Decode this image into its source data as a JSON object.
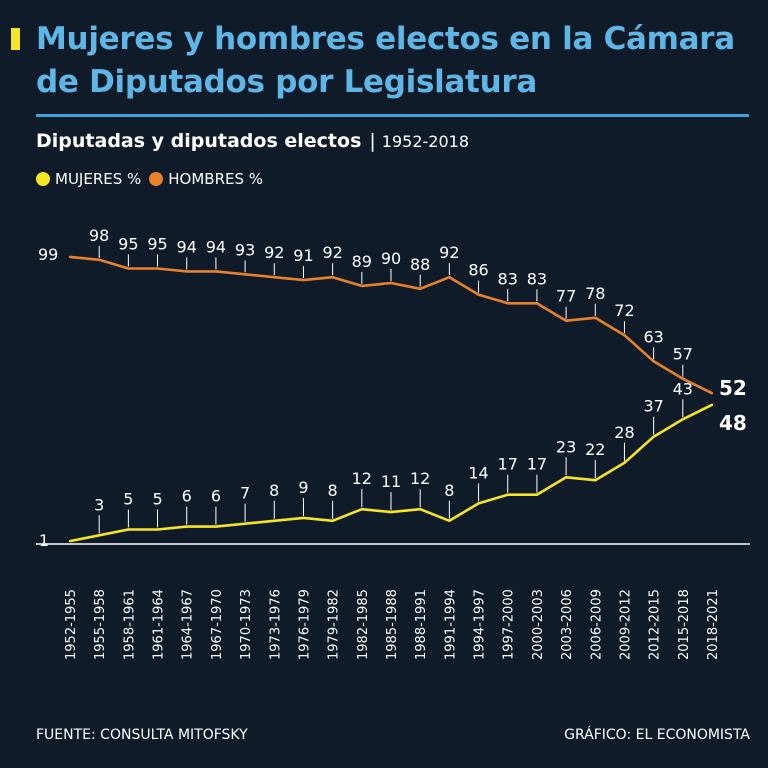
{
  "header": {
    "title": "Mujeres y hombres electos en la Cámara de Diputados por Legislatura",
    "subtitle": "Diputadas y diputados electos",
    "subtitle_separator": "|",
    "period": "1952-2018"
  },
  "legend": {
    "women_label": "MUJERES %",
    "men_label": "HOMBRES %"
  },
  "footer": {
    "source": "FUENTE: CONSULTA MITOFSKY",
    "credit": "GRÁFICO: EL ECONOMISTA"
  },
  "colors": {
    "background": "#101b29",
    "title": "#5fb6e6",
    "women": "#f5e625",
    "men": "#e8822a",
    "text": "#ffffff"
  },
  "chart_data": {
    "type": "line",
    "categories": [
      "1952-1955",
      "1955-1958",
      "1958-1961",
      "1961-1964",
      "1964-1967",
      "1967-1970",
      "1970-1973",
      "1973-1976",
      "1976-1979",
      "1979-1982",
      "1982-1985",
      "1985-1988",
      "1988-1991",
      "1991-1994",
      "1994-1997",
      "1997-2000",
      "2000-2003",
      "2003-2006",
      "2006-2009",
      "2009-2012",
      "2012-2015",
      "2015-2018",
      "2018-2021"
    ],
    "series": [
      {
        "name": "MUJERES %",
        "values": [
          1,
          3,
          5,
          5,
          6,
          6,
          7,
          8,
          9,
          8,
          12,
          11,
          12,
          8,
          14,
          17,
          17,
          23,
          22,
          28,
          37,
          43,
          48
        ]
      },
      {
        "name": "HOMBRES %",
        "values": [
          99,
          98,
          95,
          95,
          94,
          94,
          93,
          92,
          91,
          92,
          89,
          90,
          88,
          92,
          86,
          83,
          83,
          77,
          78,
          72,
          63,
          57,
          52
        ]
      }
    ],
    "ylim": [
      0,
      100
    ],
    "grid": false,
    "legend_position": "top-left"
  }
}
